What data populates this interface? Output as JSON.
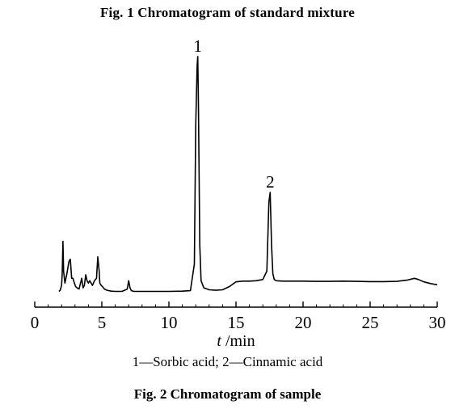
{
  "figure": {
    "caption_fig1": "Fig. 1    Chromatogram of standard mixture",
    "caption_fig2": "Fig. 2    Chromatogram of sample",
    "legend_note": "1—Sorbic acid; 2—Cinnamic acid"
  },
  "chart_data": {
    "type": "line",
    "title": "",
    "xlabel_italic": "t",
    "xlabel_unit": "/min",
    "xlim": [
      0,
      30
    ],
    "ylim": [
      0,
      100
    ],
    "xticks": [
      0,
      5,
      10,
      15,
      20,
      25,
      30
    ],
    "grid": false,
    "series": [
      {
        "x": [
          1.8,
          1.9,
          2.0,
          2.05,
          2.1,
          2.15,
          2.25,
          2.4,
          2.55,
          2.65,
          2.75,
          2.85,
          2.95,
          3.05,
          3.15,
          3.3,
          3.5,
          3.6,
          3.7,
          3.8,
          3.9,
          4.0,
          4.1,
          4.2,
          4.3,
          4.45,
          4.6,
          4.7,
          4.8,
          4.85,
          4.95,
          5.05,
          5.2,
          5.4,
          5.7,
          6.0,
          6.5,
          6.9,
          7.0,
          7.1,
          7.2,
          7.4,
          8.0,
          9.0,
          10.0,
          11.0,
          11.6,
          11.9,
          12.0,
          12.1,
          12.15,
          12.2,
          12.3,
          12.4,
          12.6,
          13.0,
          13.5,
          14.0,
          14.5,
          15.0,
          15.5,
          16.0,
          16.5,
          17.0,
          17.3,
          17.45,
          17.55,
          17.65,
          17.75,
          17.85,
          18.0,
          18.5,
          19.0,
          20.0,
          21.0,
          22.0,
          23.0,
          24.0,
          25.0,
          26.0,
          27.0,
          27.8,
          28.3,
          28.6,
          29.0,
          29.5,
          30.0
        ],
        "y": [
          0.5,
          1.0,
          3.0,
          8.0,
          21.5,
          9.0,
          4.0,
          8.0,
          13.0,
          14.0,
          6.0,
          6.0,
          4.0,
          2.5,
          2.0,
          1.5,
          6.0,
          2.0,
          3.0,
          7.5,
          5.0,
          4.0,
          5.0,
          4.0,
          3.0,
          5.0,
          6.0,
          15.0,
          9.0,
          4.0,
          3.0,
          2.5,
          1.5,
          1.0,
          0.6,
          0.5,
          0.5,
          1.5,
          5.0,
          2.0,
          0.8,
          0.5,
          0.5,
          0.5,
          0.5,
          0.6,
          0.8,
          12.0,
          70.0,
          95.0,
          99.0,
          80.0,
          20.0,
          5.0,
          2.0,
          1.2,
          1.0,
          1.2,
          2.5,
          4.5,
          4.8,
          4.8,
          5.0,
          5.5,
          9.0,
          38.0,
          42.0,
          20.0,
          8.0,
          5.5,
          5.0,
          4.8,
          4.8,
          4.8,
          4.7,
          4.7,
          4.8,
          4.7,
          4.6,
          4.6,
          4.7,
          5.3,
          6.0,
          5.5,
          4.5,
          3.8,
          3.3
        ]
      }
    ],
    "peak_labels": [
      {
        "text": "1",
        "x": 12.15,
        "y": 99.0
      },
      {
        "text": "2",
        "x": 17.55,
        "y": 42.0
      }
    ]
  }
}
